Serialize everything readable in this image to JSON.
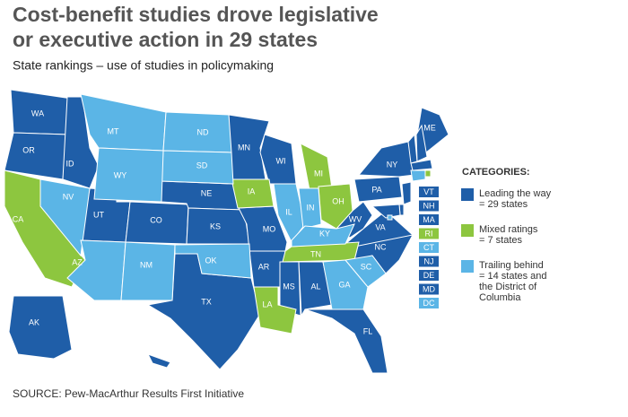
{
  "title": [
    "Cost-benefit studies drove legislative",
    "or executive action in 29 states"
  ],
  "subtitle": "State rankings – use of studies in policymaking",
  "legend": {
    "heading": "CATEGORIES:",
    "categories": [
      {
        "label": [
          "Leading the way",
          "= 29 states"
        ],
        "color": "#1f5ea8",
        "states": [
          "WA",
          "OR",
          "ID",
          "UT",
          "CO",
          "NE",
          "KS",
          "TX",
          "MN",
          "WI",
          "MO",
          "AR",
          "MS",
          "AL",
          "FL",
          "NC",
          "VA",
          "WV",
          "PA",
          "NY",
          "ME",
          "AK",
          null,
          null,
          null,
          null,
          null,
          null,
          null
        ]
      },
      {
        "label": [
          "Mixed ratings",
          "= 7 states"
        ],
        "color": "#8dc63f",
        "states": [
          "CA",
          "IA",
          "MI",
          "OH",
          "TN",
          "LA",
          null
        ]
      },
      {
        "label": [
          "Trailing behind",
          "= 14 states and",
          "the District of",
          "Columbia"
        ],
        "color": "#5bb5e6",
        "states": [
          "MT",
          "ND",
          "SD",
          "WY",
          "NV",
          "AZ",
          "NM",
          "OK",
          "IL",
          "IN",
          "KY",
          "GA",
          "SC",
          null,
          null
        ]
      }
    ]
  },
  "small_states": {
    "labels": [
      "VT",
      "NH",
      "MA",
      "RI",
      "CT",
      "NJ",
      "DE",
      "MD",
      "DC"
    ],
    "colors": [
      "#1f5ea8",
      "#1f5ea8",
      "#1f5ea8",
      "#8dc63f",
      "#5bb5e6",
      "#1f5ea8",
      "#1f5ea8",
      "#1f5ea8",
      "#5bb5e6"
    ]
  },
  "source": "SOURCE: Pew-MacArthur Results First Initiative"
}
